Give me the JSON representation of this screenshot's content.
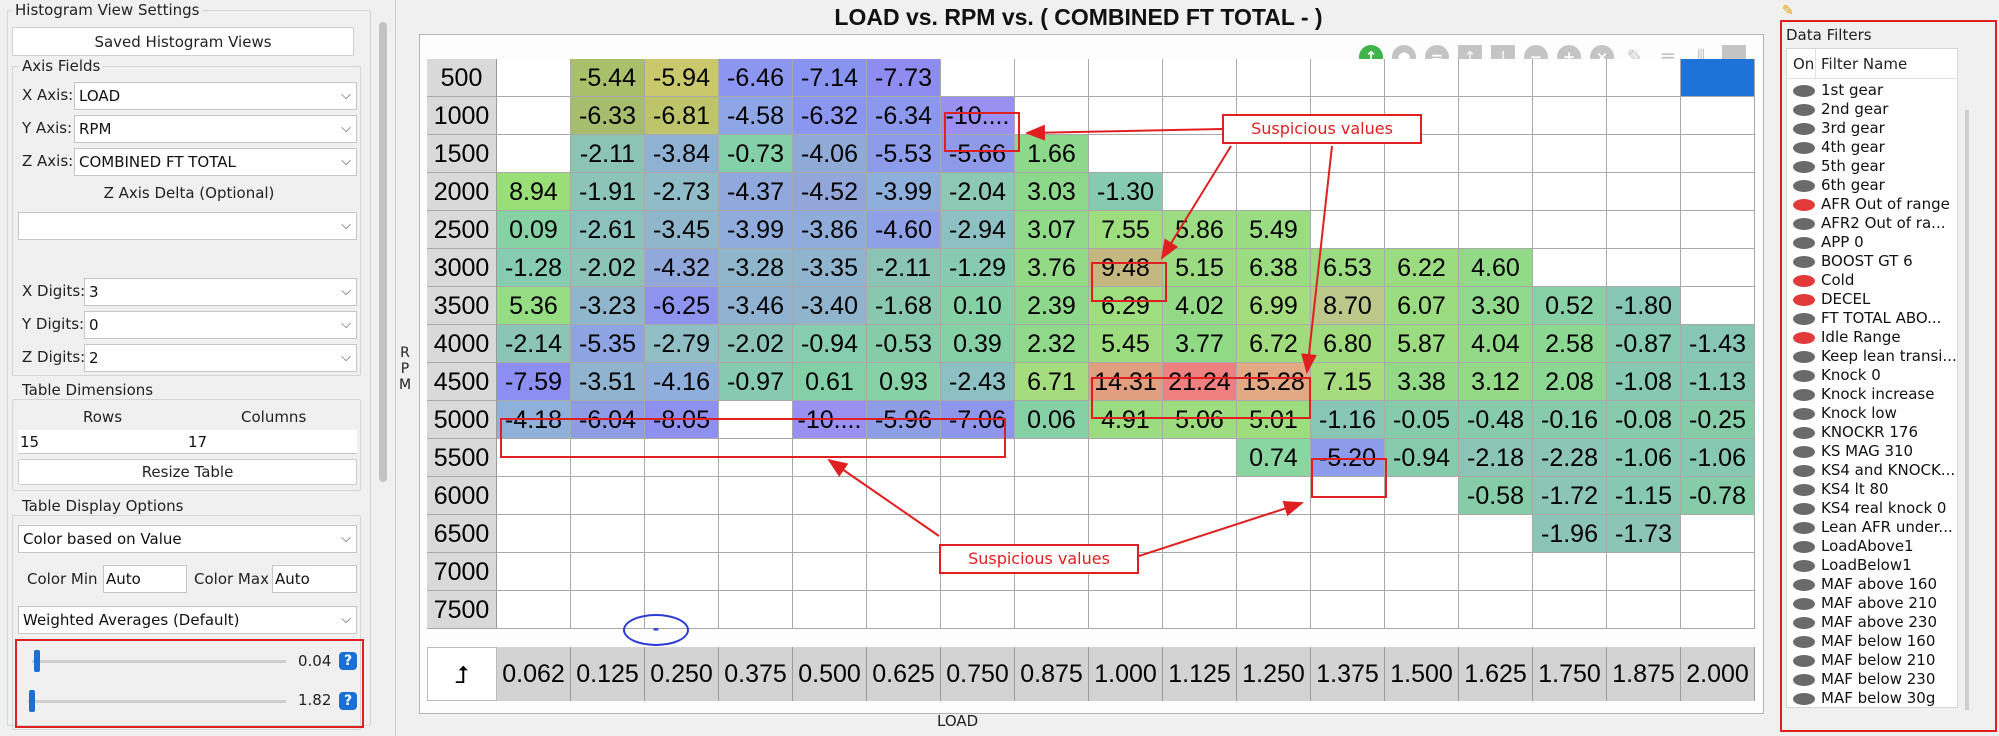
{
  "left_panel": {
    "histogram_group_title": "Histogram View Settings",
    "saved_views_button": "Saved Histogram Views",
    "axis_fields_title": "Axis Fields",
    "x_axis_label": "X Axis:",
    "x_axis_value": "LOAD",
    "y_axis_label": "Y Axis:",
    "y_axis_value": "RPM",
    "z_axis_label": "Z Axis:",
    "z_axis_value": "COMBINED FT TOTAL",
    "z_delta_label": "Z Axis Delta (Optional)",
    "z_delta_value": "",
    "x_digits_label": "X Digits:",
    "x_digits_value": "3",
    "y_digits_label": "Y Digits:",
    "y_digits_value": "0",
    "z_digits_label": "Z Digits:",
    "z_digits_value": "2",
    "table_dims_title": "Table Dimensions",
    "rows_label": "Rows",
    "columns_label": "Columns",
    "rows_value": "15",
    "columns_value": "17",
    "resize_button": "Resize Table",
    "display_options_title": "Table Display Options",
    "color_mode_value": "Color based on Value",
    "color_min_label": "Color Min",
    "color_min_value": "Auto",
    "color_max_label": "Color Max",
    "color_max_value": "Auto",
    "averaging_value": "Weighted Averages (Default)",
    "slider1_value": "0.04",
    "slider2_value": "1.82",
    "help_glyph": "?"
  },
  "main": {
    "title": "LOAD vs. RPM vs. ( COMBINED FT TOTAL -   )",
    "y_axis_title": "RPM",
    "x_axis_title": "LOAD",
    "corner_glyph": "⮥",
    "toolbar_icons": [
      "add-icon",
      "circle-icon",
      "equals-icon",
      "arrow-up-icon",
      "arrow-down-icon",
      "minus-icon",
      "plus-icon",
      "clear-icon",
      "edit-icon",
      "rows-icon",
      "columns-icon",
      "square-icon"
    ],
    "row_headers": [
      "500",
      "1000",
      "1500",
      "2000",
      "2500",
      "3000",
      "3500",
      "4000",
      "4500",
      "5000",
      "5500",
      "6000",
      "6500",
      "7000",
      "7500"
    ],
    "col_headers": [
      "0.062",
      "0.125",
      "0.250",
      "0.375",
      "0.500",
      "0.625",
      "0.750",
      "0.875",
      "1.000",
      "1.125",
      "1.250",
      "1.375",
      "1.500",
      "1.625",
      "1.750",
      "1.875",
      "2.000"
    ],
    "cells": [
      [
        "",
        "-5.44",
        "-5.94",
        "-6.46",
        "-7.14",
        "-7.73",
        "",
        "",
        "",
        "",
        "",
        "",
        "",
        "",
        "",
        "",
        ""
      ],
      [
        "",
        "-6.33",
        "-6.81",
        "-4.58",
        "-6.32",
        "-6.34",
        "-10....",
        "",
        "",
        "",
        "",
        "",
        "",
        "",
        "",
        "",
        ""
      ],
      [
        "",
        "-2.11",
        "-3.84",
        "-0.73",
        "-4.06",
        "-5.53",
        "-5.66",
        "1.66",
        "",
        "",
        "",
        "",
        "",
        "",
        "",
        "",
        ""
      ],
      [
        "8.94",
        "-1.91",
        "-2.73",
        "-4.37",
        "-4.52",
        "-3.99",
        "-2.04",
        "3.03",
        "-1.30",
        "",
        "",
        "",
        "",
        "",
        "",
        "",
        ""
      ],
      [
        "0.09",
        "-2.61",
        "-3.45",
        "-3.99",
        "-3.86",
        "-4.60",
        "-2.94",
        "3.07",
        "7.55",
        "5.86",
        "5.49",
        "",
        "",
        "",
        "",
        "",
        ""
      ],
      [
        "-1.28",
        "-2.02",
        "-4.32",
        "-3.28",
        "-3.35",
        "-2.11",
        "-1.29",
        "3.76",
        "9.48",
        "5.15",
        "6.38",
        "6.53",
        "6.22",
        "4.60",
        "",
        "",
        ""
      ],
      [
        "5.36",
        "-3.23",
        "-6.25",
        "-3.46",
        "-3.40",
        "-1.68",
        "0.10",
        "2.39",
        "6.29",
        "4.02",
        "6.99",
        "8.70",
        "6.07",
        "3.30",
        "0.52",
        "-1.80",
        ""
      ],
      [
        "-2.14",
        "-5.35",
        "-2.79",
        "-2.02",
        "-0.94",
        "-0.53",
        "0.39",
        "2.32",
        "5.45",
        "3.77",
        "6.72",
        "6.80",
        "5.87",
        "4.04",
        "2.58",
        "-0.87",
        "-1.43"
      ],
      [
        "-7.59",
        "-3.51",
        "-4.16",
        "-0.97",
        "0.61",
        "0.93",
        "-2.43",
        "6.71",
        "14.31",
        "21.24",
        "15.28",
        "7.15",
        "3.38",
        "3.12",
        "2.08",
        "-1.08",
        "-1.13"
      ],
      [
        "-4.18",
        "-6.04",
        "-8.05",
        "",
        "-10....",
        "-5.96",
        "-7.06",
        "0.06",
        "4.91",
        "5.06",
        "5.01",
        "-1.16",
        "-0.05",
        "-0.48",
        "-0.16",
        "-0.08",
        "-0.25"
      ],
      [
        "",
        "",
        "",
        "",
        "",
        "",
        "",
        "",
        "",
        "",
        "0.74",
        "-5.20",
        "-0.94",
        "-2.18",
        "-2.28",
        "-1.06",
        "-1.06"
      ],
      [
        "",
        "",
        "",
        "",
        "",
        "",
        "",
        "",
        "",
        "",
        "",
        "",
        "",
        "-0.58",
        "-1.72",
        "-1.15",
        "-0.78"
      ],
      [
        "",
        "",
        "",
        "",
        "",
        "",
        "",
        "",
        "",
        "",
        "",
        "",
        "",
        "",
        "-1.96",
        "-1.73",
        ""
      ],
      [
        "",
        "",
        "",
        "",
        "",
        "",
        "",
        "",
        "",
        "",
        "",
        "",
        "",
        "",
        "",
        "",
        ""
      ],
      [
        "",
        "",
        "",
        "",
        "",
        "",
        "",
        "",
        "",
        "",
        "",
        "",
        "",
        "",
        "",
        "",
        ""
      ]
    ],
    "cell_colors": [
      [
        "#fff",
        "#a9c06a",
        "#c9c86a",
        "#8c96f0",
        "#8894f0",
        "#8e8cf0",
        "#fff",
        "#fff",
        "#fff",
        "#fff",
        "#fff",
        "#fff",
        "#fff",
        "#fff",
        "#fff",
        "#fff",
        "#1e73d8"
      ],
      [
        "#fff",
        "#a6bd6e",
        "#bdc46a",
        "#8ea6e6",
        "#8a96f0",
        "#8c98ee",
        "#9a90f2",
        "#fff",
        "#fff",
        "#fff",
        "#fff",
        "#fff",
        "#fff",
        "#fff",
        "#fff",
        "#fff",
        "#fff"
      ],
      [
        "#fff",
        "#8cc4b4",
        "#8fb2d4",
        "#84d0a8",
        "#90aad8",
        "#8c9cea",
        "#8e9ae8",
        "#8ed88c",
        "#fff",
        "#fff",
        "#fff",
        "#fff",
        "#fff",
        "#fff",
        "#fff",
        "#fff",
        "#fff"
      ],
      [
        "#9ade78",
        "#8cc4b8",
        "#90bcc8",
        "#90a8dc",
        "#92a6da",
        "#8eaedc",
        "#8cc8b4",
        "#8ed88c",
        "#86cab0",
        "#fff",
        "#fff",
        "#fff",
        "#fff",
        "#fff",
        "#fff",
        "#fff",
        "#fff"
      ],
      [
        "#86d2a4",
        "#8cc2be",
        "#90b6cc",
        "#90acdc",
        "#90acda",
        "#8ea0e6",
        "#8cc0c2",
        "#90da8a",
        "#9ede7e",
        "#9cdc82",
        "#9adc82",
        "#fff",
        "#fff",
        "#fff",
        "#fff",
        "#fff",
        "#fff"
      ],
      [
        "#86ccb0",
        "#8cc4b8",
        "#90a8da",
        "#90b6cc",
        "#90b4ce",
        "#8cc4b4",
        "#86cab0",
        "#94da86",
        "#c4b880",
        "#9cda82",
        "#9cdc80",
        "#9cdc80",
        "#9cdc80",
        "#92da88",
        "#fff",
        "#fff",
        "#fff"
      ],
      [
        "#96dc82",
        "#90b6cc",
        "#8e94ee",
        "#90b2d0",
        "#90b4cc",
        "#88c8ae",
        "#86d0a6",
        "#8ed88c",
        "#9ede7e",
        "#94da86",
        "#a4dc7e",
        "#bcc88a",
        "#9cdc80",
        "#90d88c",
        "#88d0a6",
        "#86c6b2",
        "#fff"
      ],
      [
        "#8cc4b6",
        "#8ea4e2",
        "#90bec4",
        "#8cc4b6",
        "#86ccae",
        "#86cca8",
        "#86d0a6",
        "#90d88a",
        "#9edc80",
        "#90da86",
        "#a0dc7e",
        "#a0dc7e",
        "#9cdc80",
        "#92da88",
        "#8cd892",
        "#86cab0",
        "#86c6b2"
      ],
      [
        "#8c8ef2",
        "#90b4d0",
        "#8faedc",
        "#86cab0",
        "#84d0a6",
        "#86d2a6",
        "#8cc0c2",
        "#a4dc7e",
        "#e0a080",
        "#ee8080",
        "#e2aa84",
        "#a6dc7e",
        "#94da86",
        "#94da86",
        "#8cd892",
        "#86c8b2",
        "#86c8b2"
      ],
      [
        "#8fb0d8",
        "#8e9ce6",
        "#8e90f0",
        "#fff",
        "#9a90f2",
        "#8e9ee6",
        "#8e96ec",
        "#86d0a6",
        "#9cdc80",
        "#9edc80",
        "#9edc80",
        "#88c6b4",
        "#86ccac",
        "#86ccac",
        "#86ccac",
        "#86ccac",
        "#86cca8"
      ],
      [
        "#fff",
        "#fff",
        "#fff",
        "#fff",
        "#fff",
        "#fff",
        "#fff",
        "#fff",
        "#fff",
        "#fff",
        "#8ad6a0",
        "#8c9cea",
        "#86ccac",
        "#8cc4b6",
        "#8cc4b6",
        "#86c8b2",
        "#86c8b2"
      ],
      [
        "#fff",
        "#fff",
        "#fff",
        "#fff",
        "#fff",
        "#fff",
        "#fff",
        "#fff",
        "#fff",
        "#fff",
        "#fff",
        "#fff",
        "#fff",
        "#86cca8",
        "#8cc4b6",
        "#86c8b2",
        "#86cca8"
      ],
      [
        "#fff",
        "#fff",
        "#fff",
        "#fff",
        "#fff",
        "#fff",
        "#fff",
        "#fff",
        "#fff",
        "#fff",
        "#fff",
        "#fff",
        "#fff",
        "#fff",
        "#8cc4b8",
        "#8cc4b6",
        "#fff"
      ],
      [
        "#fff",
        "#fff",
        "#fff",
        "#fff",
        "#fff",
        "#fff",
        "#fff",
        "#fff",
        "#fff",
        "#fff",
        "#fff",
        "#fff",
        "#fff",
        "#fff",
        "#fff",
        "#fff",
        "#fff"
      ],
      [
        "#fff",
        "#fff",
        "#fff",
        "#fff",
        "#fff",
        "#fff",
        "#fff",
        "#fff",
        "#fff",
        "#fff",
        "#fff",
        "#fff",
        "#fff",
        "#fff",
        "#fff",
        "#fff",
        "#fff"
      ]
    ],
    "callout_top": "Suspicious values",
    "callout_bottom": "Suspicious values",
    "cursor_glyph": "-"
  },
  "filters": {
    "title": "Data Filters",
    "col_on": "On",
    "col_name": "Filter Name",
    "items": [
      {
        "name": "1st gear",
        "active": false
      },
      {
        "name": "2nd gear",
        "active": false
      },
      {
        "name": "3rd gear",
        "active": false
      },
      {
        "name": "4th gear",
        "active": false
      },
      {
        "name": "5th gear",
        "active": false
      },
      {
        "name": "6th gear",
        "active": false
      },
      {
        "name": "AFR Out of range",
        "active": true
      },
      {
        "name": "AFR2 Out of ra...",
        "active": false
      },
      {
        "name": "APP 0",
        "active": false
      },
      {
        "name": "BOOST GT 6",
        "active": false
      },
      {
        "name": "Cold",
        "active": true
      },
      {
        "name": "DECEL",
        "active": true
      },
      {
        "name": "FT TOTAL ABO...",
        "active": false
      },
      {
        "name": "Idle Range",
        "active": true
      },
      {
        "name": "Keep lean transi...",
        "active": false
      },
      {
        "name": "Knock 0",
        "active": false
      },
      {
        "name": "Knock increase",
        "active": false
      },
      {
        "name": "Knock low",
        "active": false
      },
      {
        "name": "KNOCKR 176",
        "active": false
      },
      {
        "name": "KS MAG 310",
        "active": false
      },
      {
        "name": "KS4 and KNOCK...",
        "active": false
      },
      {
        "name": "KS4 lt 80",
        "active": false
      },
      {
        "name": "KS4 real knock 0",
        "active": false
      },
      {
        "name": "Lean AFR under...",
        "active": false
      },
      {
        "name": "LoadAbove1",
        "active": false
      },
      {
        "name": "LoadBelow1",
        "active": false
      },
      {
        "name": "MAF above 160",
        "active": false
      },
      {
        "name": "MAF above 210",
        "active": false
      },
      {
        "name": "MAF above 230",
        "active": false
      },
      {
        "name": "MAF below 160",
        "active": false
      },
      {
        "name": "MAF below 210",
        "active": false
      },
      {
        "name": "MAF below 230",
        "active": false
      },
      {
        "name": "MAF below 30g",
        "active": false
      }
    ],
    "active_color": "#e23a3a",
    "inactive_color": "#6a6a6a"
  }
}
